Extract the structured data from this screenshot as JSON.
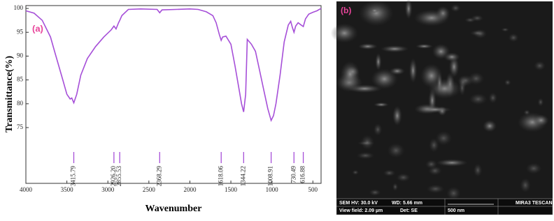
{
  "chart_data": {
    "type": "line",
    "panel_label": "(a)",
    "xlabel": "Wavenumber",
    "ylabel": "Transmittance(%)",
    "color": "#a64fd8",
    "xlim": [
      4000,
      400
    ],
    "ylim": [
      63.3,
      100.6
    ],
    "xticks": [
      4000,
      3500,
      3000,
      2500,
      2000,
      1500,
      1000,
      500
    ],
    "yticks": [
      75,
      80,
      85,
      90,
      95,
      100
    ],
    "x": [
      4000,
      3900,
      3800,
      3700,
      3650,
      3600,
      3550,
      3500,
      3460,
      3440,
      3415.79,
      3380,
      3330,
      3250,
      3150,
      3050,
      2960,
      2926.2,
      2900,
      2870,
      2855.53,
      2830,
      2750,
      2600,
      2400,
      2368.29,
      2340,
      2000,
      1900,
      1800,
      1720,
      1680,
      1640,
      1618.06,
      1600,
      1560,
      1500,
      1450,
      1400,
      1370,
      1344.22,
      1320,
      1300,
      1250,
      1200,
      1150,
      1100,
      1050,
      1008.91,
      980,
      950,
      900,
      850,
      800,
      770,
      750,
      730.49,
      710,
      680,
      650,
      616.88,
      590,
      550,
      500,
      450,
      400
    ],
    "values": [
      99.5,
      99,
      97.5,
      94,
      91,
      88,
      85,
      82,
      81,
      81.2,
      80.2,
      82,
      86,
      89.5,
      92,
      94,
      95.5,
      96.3,
      95.7,
      97,
      97.5,
      98.5,
      99.8,
      99.9,
      99.8,
      99.1,
      99.7,
      99.9,
      99.8,
      99.3,
      98.5,
      97,
      94.5,
      93.3,
      94,
      94.2,
      92.5,
      88,
      83,
      80,
      78.3,
      82,
      93.5,
      92.5,
      91,
      87,
      83,
      79,
      76.5,
      77.5,
      80,
      86,
      93,
      96.5,
      97.3,
      96,
      95,
      96.3,
      97,
      96.6,
      96.2,
      97.8,
      98.8,
      99.2,
      99.5,
      100
    ],
    "peaks": [
      3415.79,
      {
        "value": 2926.2,
        "label": "2926.20"
      },
      2855.53,
      2368.29,
      1618.06,
      1344.22,
      1008.91,
      730.49,
      616.88
    ]
  },
  "sem_image": {
    "panel_label": "(b)",
    "hv": "SEM HV: 30.0 kV",
    "wd": "WD: 5.66 mm",
    "brand": "MIRA3 TESCAN",
    "view_field": "View field: 2.09 µm",
    "det": "Det: SE",
    "scale": "500 nm"
  }
}
